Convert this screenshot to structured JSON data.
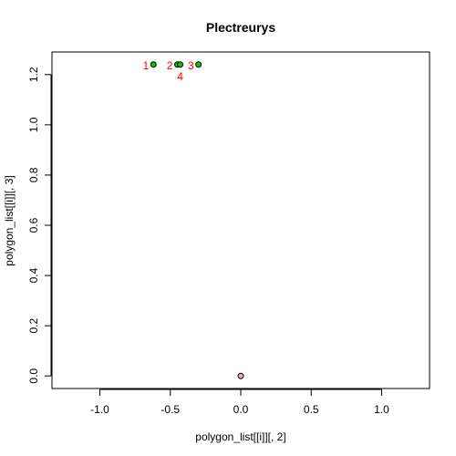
{
  "chart_data": {
    "type": "scatter",
    "title": "Plectreurys",
    "xlabel": "polygon_list[[i]][, 2]",
    "ylabel": "polygon_list[[i]][, 3]",
    "xlim": [
      -1.34,
      1.34
    ],
    "ylim": [
      -0.05,
      1.29
    ],
    "x_ticks": [
      -1.0,
      -0.5,
      0.0,
      0.5,
      1.0
    ],
    "x_tick_labels": [
      "-1.0",
      "-0.5",
      "0.0",
      "0.5",
      "1.0"
    ],
    "y_ticks": [
      0.0,
      0.2,
      0.4,
      0.6,
      0.8,
      1.0,
      1.2
    ],
    "y_tick_labels": [
      "0.0",
      "0.2",
      "0.4",
      "0.6",
      "0.8",
      "1.0",
      "1.2"
    ],
    "grid": false,
    "legend": "none",
    "series": [
      {
        "color": "#00cc00",
        "points": [
          {
            "x": -0.62,
            "y": 1.24,
            "label": "1",
            "label_pos": "left"
          },
          {
            "x": -0.45,
            "y": 1.24,
            "label": "2",
            "label_pos": "left"
          },
          {
            "x": -0.3,
            "y": 1.24,
            "label": "3",
            "label_pos": "left"
          },
          {
            "x": -0.43,
            "y": 1.24,
            "label": "4",
            "label_pos": "below"
          }
        ]
      },
      {
        "color": "#ff99cc",
        "points": [
          {
            "x": 0.0,
            "y": 0.0
          }
        ]
      }
    ],
    "point_label_color": "#ff0000"
  }
}
